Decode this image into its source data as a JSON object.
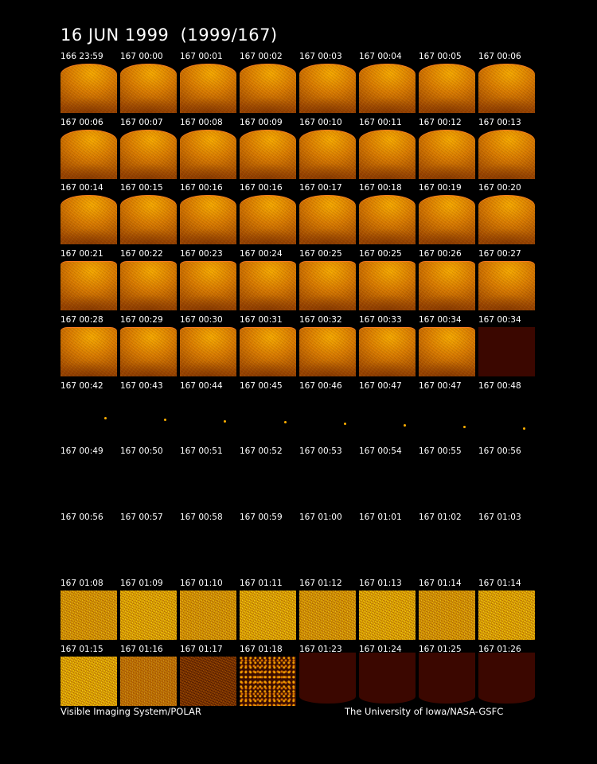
{
  "title": "16 JUN 1999  (1999/167)",
  "footer": {
    "left": "Visible Imaging System/POLAR",
    "right": "The University of Iowa/NASA-GSFC"
  },
  "colors": {
    "background": "#000000",
    "aurora": "#f6a800",
    "maroon": "#3b0700"
  },
  "rows": [
    {
      "style": "earth",
      "labels": [
        "166 23:59",
        "167 00:00",
        "167 00:01",
        "167 00:02",
        "167 00:03",
        "167 00:04",
        "167 00:05",
        "167 00:06"
      ]
    },
    {
      "style": "earth",
      "labels": [
        "167 00:06",
        "167 00:07",
        "167 00:08",
        "167 00:09",
        "167 00:10",
        "167 00:11",
        "167 00:12",
        "167 00:13"
      ]
    },
    {
      "style": "earth",
      "labels": [
        "167 00:14",
        "167 00:15",
        "167 00:16",
        "167 00:16",
        "167 00:17",
        "167 00:18",
        "167 00:19",
        "167 00:20"
      ]
    },
    {
      "style": "earth-flat",
      "labels": [
        "167 00:21",
        "167 00:22",
        "167 00:23",
        "167 00:24",
        "167 00:25",
        "167 00:25",
        "167 00:26",
        "167 00:27"
      ]
    },
    {
      "style": "earth-flat-last-maroon",
      "labels": [
        "167 00:28",
        "167 00:29",
        "167 00:30",
        "167 00:31",
        "167 00:32",
        "167 00:33",
        "167 00:34",
        "167 00:34"
      ]
    },
    {
      "style": "dots",
      "labels": [
        "167 00:42",
        "167 00:43",
        "167 00:44",
        "167 00:45",
        "167 00:46",
        "167 00:47",
        "167 00:47",
        "167 00:48"
      ]
    },
    {
      "style": "blank",
      "labels": [
        "167 00:49",
        "167 00:50",
        "167 00:51",
        "167 00:52",
        "167 00:53",
        "167 00:54",
        "167 00:55",
        "167 00:56"
      ]
    },
    {
      "style": "blank",
      "labels": [
        "167 00:56",
        "167 00:57",
        "167 00:58",
        "167 00:59",
        "167 01:00",
        "167 01:01",
        "167 01:02",
        "167 01:03"
      ]
    },
    {
      "style": "grainy",
      "labels": [
        "167 01:08",
        "167 01:09",
        "167 01:10",
        "167 01:11",
        "167 01:12",
        "167 01:13",
        "167 01:14",
        "167 01:14"
      ]
    },
    {
      "style": "grainy-fade",
      "labels": [
        "167 01:15",
        "167 01:16",
        "167 01:17",
        "167 01:18",
        "167 01:23",
        "167 01:24",
        "167 01:25",
        "167 01:26"
      ]
    }
  ]
}
